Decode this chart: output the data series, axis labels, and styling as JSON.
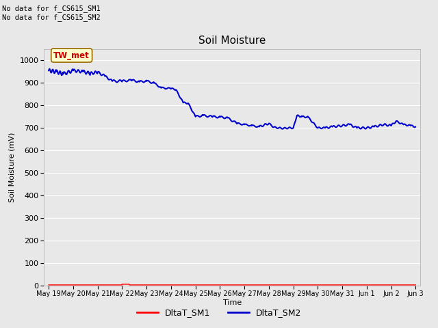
{
  "title": "Soil Moisture",
  "ylabel": "Soil Moisture (mV)",
  "xlabel": "Time",
  "ylim": [
    0,
    1050
  ],
  "yticks": [
    0,
    100,
    200,
    300,
    400,
    500,
    600,
    700,
    800,
    900,
    1000
  ],
  "plot_bg_color": "#e8e8e8",
  "figure_color": "#e8e8e8",
  "no_data_text1": "No data for f_CS615_SM1",
  "no_data_text2": "No data for f_CS615_SM2",
  "legend_label1": "DltaT_SM1",
  "legend_label2": "DltaT_SM2",
  "legend_color1": "#ff0000",
  "legend_color2": "#0000cc",
  "line_color_sm1": "#ff0000",
  "line_color_sm2": "#0000cc",
  "annotation_text": "TW_met",
  "annotation_color": "#cc0000",
  "annotation_bg": "#ffffcc",
  "x_tick_labels": [
    "May 19",
    "May 20",
    "May 21",
    "May 22",
    "May 23",
    "May 24",
    "May 25",
    "May 26",
    "May 27",
    "May 28",
    "May 29",
    "May 30",
    "May 31",
    "Jun 1",
    "Jun 2",
    "Jun 3"
  ]
}
